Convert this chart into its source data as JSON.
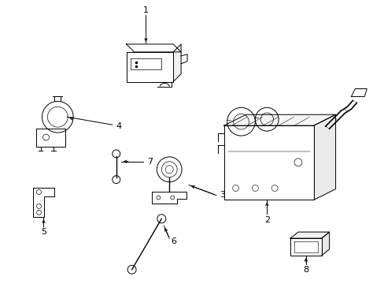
{
  "bg_color": "#ffffff",
  "line_color": "#000000",
  "figsize": [
    4.89,
    3.6
  ],
  "dpi": 100,
  "lw": 0.7
}
